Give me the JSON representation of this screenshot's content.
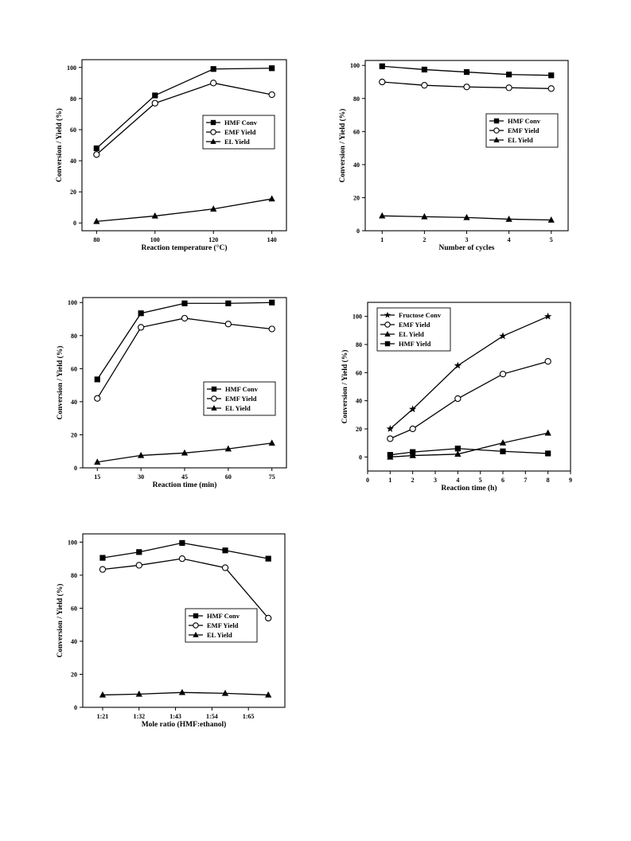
{
  "chart_data": [
    {
      "type": "line",
      "xlabel": "Reaction temperature (°C)",
      "ylabel": "Conversion / Yield (%)",
      "x_ticks": [
        "80",
        "100",
        "120",
        "140"
      ],
      "y_ticks": [
        "0",
        "20",
        "40",
        "60",
        "80",
        "100"
      ],
      "xlim": [
        75,
        145
      ],
      "ylim": [
        -5,
        105
      ],
      "legend_position": "middle-right",
      "series": [
        {
          "name": "HMF Conv",
          "marker": "square",
          "x": [
            80,
            100,
            120,
            140
          ],
          "y": [
            48,
            82,
            99,
            99.5
          ]
        },
        {
          "name": "EMF Yield",
          "marker": "circle",
          "x": [
            80,
            100,
            120,
            140
          ],
          "y": [
            44,
            77,
            90,
            82.5
          ]
        },
        {
          "name": "EL Yield",
          "marker": "triangle",
          "x": [
            80,
            100,
            120,
            140
          ],
          "y": [
            1,
            4.5,
            9,
            15.5
          ]
        }
      ]
    },
    {
      "type": "line",
      "xlabel": "Number of cycles",
      "ylabel": "Conversion / Yield (%)",
      "x_ticks": [
        "1",
        "2",
        "3",
        "4",
        "5"
      ],
      "y_ticks": [
        "0",
        "20",
        "40",
        "60",
        "80",
        "100"
      ],
      "xlim": [
        0.6,
        5.4
      ],
      "ylim": [
        0,
        103
      ],
      "legend_position": "middle-right",
      "series": [
        {
          "name": "HMF Conv",
          "marker": "square",
          "x": [
            1,
            2,
            3,
            4,
            5
          ],
          "y": [
            99.5,
            97.5,
            96,
            94.5,
            94
          ]
        },
        {
          "name": "EMF Yield",
          "marker": "circle",
          "x": [
            1,
            2,
            3,
            4,
            5
          ],
          "y": [
            90,
            88,
            87,
            86.5,
            86
          ]
        },
        {
          "name": "EL Yield",
          "marker": "triangle",
          "x": [
            1,
            2,
            3,
            4,
            5
          ],
          "y": [
            9,
            8.5,
            8,
            7,
            6.5
          ]
        }
      ]
    },
    {
      "type": "line",
      "xlabel": "Reaction time (min)",
      "ylabel": "Conversion / Yield (%)",
      "x_ticks": [
        "15",
        "30",
        "45",
        "60",
        "75"
      ],
      "y_ticks": [
        "0",
        "20",
        "40",
        "60",
        "80",
        "100"
      ],
      "xlim": [
        10,
        80
      ],
      "ylim": [
        0,
        103
      ],
      "legend_position": "middle-right",
      "series": [
        {
          "name": "HMF Conv",
          "marker": "square",
          "x": [
            15,
            30,
            45,
            60,
            75
          ],
          "y": [
            53.5,
            93.5,
            99.5,
            99.5,
            100
          ]
        },
        {
          "name": "EMF Yield",
          "marker": "circle",
          "x": [
            15,
            30,
            45,
            60,
            75
          ],
          "y": [
            42,
            85,
            90.5,
            87,
            84
          ]
        },
        {
          "name": "EL Yield",
          "marker": "triangle",
          "x": [
            15,
            30,
            45,
            60,
            75
          ],
          "y": [
            3.5,
            7.5,
            9,
            11.5,
            15
          ]
        }
      ]
    },
    {
      "type": "line",
      "xlabel": "Reaction time (h)",
      "ylabel": "Conversion / Yield (%)",
      "x_ticks": [
        "0",
        "1",
        "2",
        "3",
        "4",
        "5",
        "6",
        "7",
        "8",
        "9"
      ],
      "y_ticks": [
        "0",
        "20",
        "40",
        "60",
        "80",
        "100"
      ],
      "xlim": [
        0,
        9
      ],
      "ylim": [
        -10,
        110
      ],
      "legend_position": "top-left",
      "series": [
        {
          "name": "Fructose Conv",
          "marker": "star",
          "x": [
            1,
            2,
            4,
            6,
            8
          ],
          "y": [
            20,
            34,
            65,
            86,
            100
          ]
        },
        {
          "name": "EMF Yield",
          "marker": "circle",
          "x": [
            1,
            2,
            4,
            6,
            8
          ],
          "y": [
            13,
            20,
            41.5,
            59,
            68
          ]
        },
        {
          "name": "EL Yield",
          "marker": "triangle",
          "x": [
            1,
            2,
            4,
            6,
            8
          ],
          "y": [
            0,
            1,
            2,
            10,
            17
          ]
        },
        {
          "name": "HMF Yield",
          "marker": "square",
          "x": [
            1,
            2,
            4,
            6,
            8
          ],
          "y": [
            1.5,
            3.5,
            6,
            4,
            2.5
          ]
        }
      ]
    },
    {
      "type": "line",
      "xlabel": "Mole ratio (HMF:ethanol)",
      "ylabel": "Conversion / Yield (%)",
      "x_ticks": [
        "1:21",
        "1:32",
        "1:43",
        "1:54",
        "1:65"
      ],
      "y_ticks": [
        "0",
        "20",
        "40",
        "60",
        "80",
        "100"
      ],
      "xlim": [
        15,
        76
      ],
      "ylim": [
        0,
        105
      ],
      "legend_position": "middle-right",
      "series": [
        {
          "name": "HMF Conv",
          "marker": "square",
          "x": [
            21,
            32,
            45,
            58,
            71
          ],
          "y": [
            90.5,
            94,
            99.5,
            95,
            90
          ]
        },
        {
          "name": "EMF Yield",
          "marker": "circle",
          "x": [
            21,
            32,
            45,
            58,
            71
          ],
          "y": [
            83.5,
            86,
            90,
            84.5,
            54
          ]
        },
        {
          "name": "EL Yield",
          "marker": "triangle",
          "x": [
            21,
            32,
            45,
            58,
            71
          ],
          "y": [
            7.5,
            8,
            9,
            8.5,
            7.5
          ]
        }
      ]
    }
  ]
}
